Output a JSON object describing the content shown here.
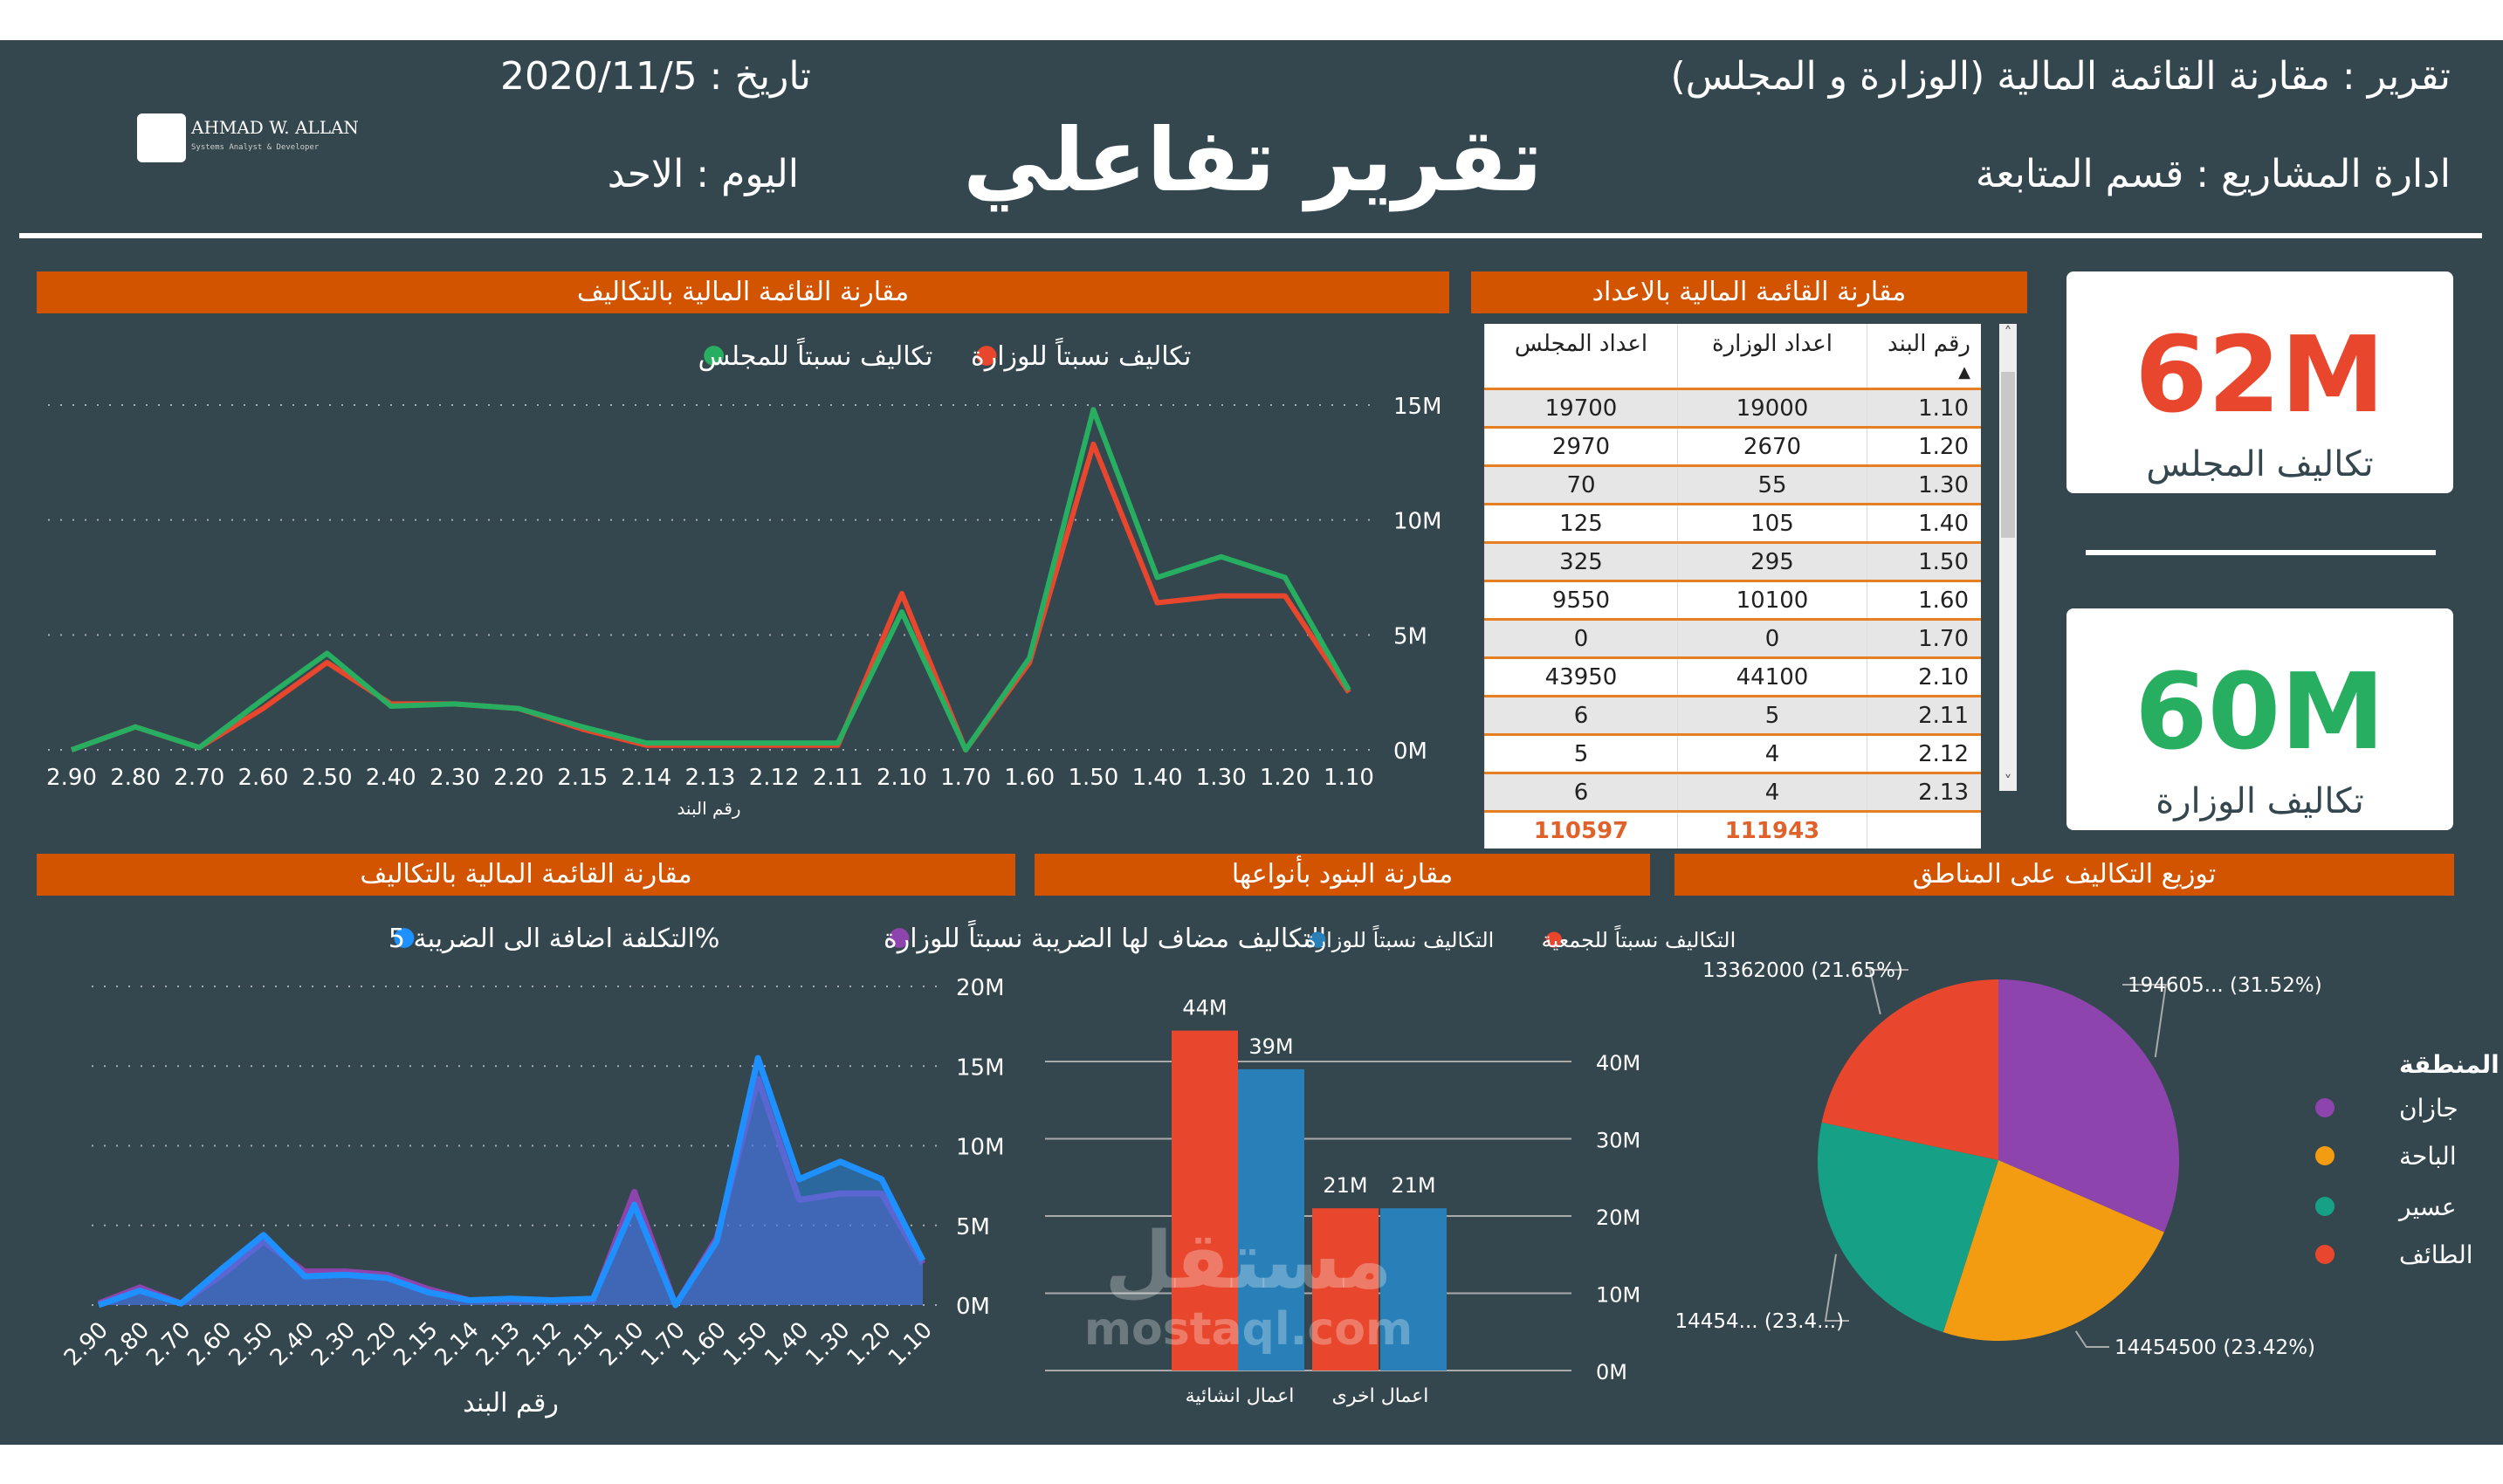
{
  "header": {
    "title": "تقرير تفاعلي",
    "report": "تقرير : مقارنة القائمة المالية (الوزارة و المجلس)",
    "department": "ادارة المشاريع : قسم المتابعة",
    "date": "تاريخ : 2020/11/5",
    "day": "اليوم : الاحد",
    "logo_name": "AHMAD W. ALLAN",
    "logo_sub": "Systems Analyst & Developer"
  },
  "colors": {
    "background": "#34474f",
    "panel_header": "#d35400",
    "council": "#27ae60",
    "ministry": "#e8472e",
    "blue": "#2980b9"
  },
  "panels": {
    "line_top": "مقارنة القائمة المالية بالتكاليف",
    "table": "مقارنة القائمة المالية بالاعداد",
    "line_bottom": "مقارنة القائمة المالية بالتكاليف",
    "bar": "مقارنة البنود بأنواعها",
    "pie": "توزيع التكاليف على المناطق"
  },
  "kpis": [
    {
      "value": "62M",
      "label": "تكاليف المجلس",
      "color": "#e8472e"
    },
    {
      "value": "60M",
      "label": "تكاليف الوزارة",
      "color": "#27ae60"
    }
  ],
  "table": {
    "columns": [
      "رقم البند",
      "اعداد الوزارة",
      "اعداد المجلس"
    ],
    "sort_icon": "sort-ascending-icon",
    "rows": [
      [
        "1.10",
        "19000",
        "19700"
      ],
      [
        "1.20",
        "2670",
        "2970"
      ],
      [
        "1.30",
        "55",
        "70"
      ],
      [
        "1.40",
        "105",
        "125"
      ],
      [
        "1.50",
        "295",
        "325"
      ],
      [
        "1.60",
        "10100",
        "9550"
      ],
      [
        "1.70",
        "0",
        "0"
      ],
      [
        "2.10",
        "44100",
        "43950"
      ],
      [
        "2.11",
        "5",
        "6"
      ],
      [
        "2.12",
        "4",
        "5"
      ],
      [
        "2.13",
        "4",
        "6"
      ]
    ],
    "totals": [
      "",
      "111943",
      "110597"
    ]
  },
  "watermark": {
    "arabic": "مستقل",
    "latin": "mostaql.com"
  },
  "chart_data": [
    {
      "type": "line",
      "xlabel": "رقم البند",
      "ylabel": "",
      "categories": [
        "2.90",
        "2.80",
        "2.70",
        "2.60",
        "2.50",
        "2.40",
        "2.30",
        "2.20",
        "2.15",
        "2.14",
        "2.13",
        "2.12",
        "2.11",
        "2.10",
        "1.70",
        "1.60",
        "1.50",
        "1.40",
        "1.30",
        "1.20",
        "1.10"
      ],
      "yticks": [
        "0M",
        "5M",
        "10M",
        "15M"
      ],
      "ylim": [
        0,
        15000000
      ],
      "grid": true,
      "legend": "top",
      "series": [
        {
          "name": "تكاليف نسبتاً للوزارة",
          "color": "#e8472e",
          "values": [
            0,
            1000000,
            100000,
            1800000,
            3800000,
            2000000,
            2000000,
            1800000,
            900000,
            200000,
            200000,
            200000,
            200000,
            6800000,
            0,
            3800000,
            13300000,
            6400000,
            6700000,
            6700000,
            2500000
          ]
        },
        {
          "name": "تكاليف نسبتاً للمجلس",
          "color": "#27ae60",
          "values": [
            0,
            1000000,
            100000,
            2200000,
            4200000,
            1900000,
            2000000,
            1800000,
            1000000,
            300000,
            300000,
            300000,
            300000,
            6000000,
            0,
            4000000,
            14800000,
            7500000,
            8400000,
            7500000,
            2600000
          ]
        }
      ]
    },
    {
      "type": "area",
      "xlabel": "رقم البند",
      "ylabel": "",
      "categories": [
        "2.90",
        "2.80",
        "2.70",
        "2.60",
        "2.50",
        "2.40",
        "2.30",
        "2.20",
        "2.15",
        "2.14",
        "2.13",
        "2.12",
        "2.11",
        "2.10",
        "1.70",
        "1.60",
        "1.50",
        "1.40",
        "1.30",
        "1.20",
        "1.10"
      ],
      "yticks": [
        "0M",
        "5M",
        "10M",
        "15M",
        "20M"
      ],
      "ylim": [
        0,
        20000000
      ],
      "grid": true,
      "legend": "top",
      "series": [
        {
          "name": "التكاليف مضاف لها الضريبة نسبتاً للوزارة",
          "color": "#8e44ad",
          "values": [
            100000,
            1100000,
            100000,
            1900000,
            4000000,
            2100000,
            2100000,
            1900000,
            1000000,
            300000,
            300000,
            300000,
            300000,
            7100000,
            0,
            4200000,
            14200000,
            6600000,
            7000000,
            7000000,
            2600000
          ]
        },
        {
          "name": "%التكلفة اضافة الى الضريبة 5",
          "color": "#1e90ff",
          "values": [
            0,
            900000,
            100000,
            2300000,
            4400000,
            1800000,
            1900000,
            1700000,
            800000,
            300000,
            400000,
            300000,
            400000,
            6300000,
            0,
            4000000,
            15500000,
            7900000,
            9000000,
            7900000,
            2800000
          ]
        }
      ]
    },
    {
      "type": "bar",
      "categories": [
        "اعمال انشائية",
        "اعمال اخرى"
      ],
      "yticks": [
        "0M",
        "10M",
        "20M",
        "30M",
        "40M"
      ],
      "ylim": [
        0,
        45000000
      ],
      "grid": true,
      "legend": "top",
      "series": [
        {
          "name": "التكاليف نسبتاً للجمعية",
          "color": "#e8472e",
          "values": [
            44000000,
            21000000
          ],
          "labels": [
            "44M",
            "21M"
          ]
        },
        {
          "name": "التكاليف نسبتاً للوزارة",
          "color": "#2980b9",
          "values": [
            39000000,
            21000000
          ],
          "labels": [
            "39M",
            "21M"
          ]
        }
      ]
    },
    {
      "type": "pie",
      "legend_title": "المنطقة",
      "legend": "right",
      "slices": [
        {
          "name": "جازان",
          "value": 19460500,
          "percent": 31.52,
          "label": "194605... (31.52%)",
          "color": "#8e44ad"
        },
        {
          "name": "الباحة",
          "value": 14454500,
          "percent": 23.42,
          "label": "14454500 (23.42%)",
          "color": "#f39c12"
        },
        {
          "name": "عسير",
          "value": 14454000,
          "percent": 23.41,
          "label": "14454... (23.4...)",
          "color": "#16a085"
        },
        {
          "name": "الطائف",
          "value": 13362000,
          "percent": 21.65,
          "label": "13362000 (21.65%)",
          "color": "#e8472e"
        }
      ]
    }
  ]
}
